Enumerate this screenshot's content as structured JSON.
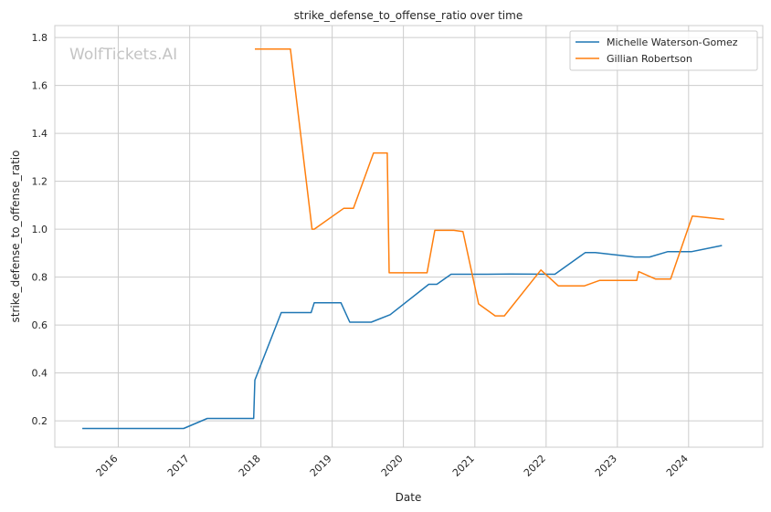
{
  "watermark": "WolfTickets.AI",
  "chart_data": {
    "type": "line",
    "title": "strike_defense_to_offense_ratio over time",
    "xlabel": "Date",
    "ylabel": "strike_defense_to_offense_ratio",
    "xlim": [
      "2015-02-10",
      "2025-01-15"
    ],
    "ylim": [
      0.09,
      1.85
    ],
    "x_ticks": [
      "2016",
      "2017",
      "2018",
      "2019",
      "2020",
      "2021",
      "2022",
      "2023",
      "2024"
    ],
    "y_ticks": [
      "0.2",
      "0.4",
      "0.6",
      "0.8",
      "1.0",
      "1.2",
      "1.4",
      "1.6",
      "1.8"
    ],
    "grid": true,
    "legend_position": "top-right",
    "series": [
      {
        "name": "Michelle Waterson-Gomez",
        "color": "#1f77b4",
        "points": [
          [
            "2015-07-01",
            0.168
          ],
          [
            "2016-12-01",
            0.168
          ],
          [
            "2017-04-01",
            0.21
          ],
          [
            "2017-11-25",
            0.21
          ],
          [
            "2017-12-01",
            0.37
          ],
          [
            "2018-04-15",
            0.652
          ],
          [
            "2018-09-15",
            0.652
          ],
          [
            "2018-10-01",
            0.693
          ],
          [
            "2019-02-15",
            0.693
          ],
          [
            "2019-04-01",
            0.612
          ],
          [
            "2019-07-20",
            0.612
          ],
          [
            "2019-10-25",
            0.643
          ],
          [
            "2020-05-10",
            0.77
          ],
          [
            "2020-06-20",
            0.77
          ],
          [
            "2020-09-01",
            0.812
          ],
          [
            "2021-03-01",
            0.812
          ],
          [
            "2021-07-01",
            0.813
          ],
          [
            "2022-02-15",
            0.812
          ],
          [
            "2022-07-20",
            0.902
          ],
          [
            "2022-09-10",
            0.902
          ],
          [
            "2023-04-01",
            0.884
          ],
          [
            "2023-06-15",
            0.884
          ],
          [
            "2023-09-15",
            0.906
          ],
          [
            "2024-01-15",
            0.906
          ],
          [
            "2024-06-20",
            0.932
          ]
        ]
      },
      {
        "name": "Gillian Robertson",
        "color": "#ff7f0e",
        "points": [
          [
            "2017-12-01",
            1.752
          ],
          [
            "2018-06-01",
            1.752
          ],
          [
            "2018-09-20",
            1.0
          ],
          [
            "2018-10-01",
            1.0
          ],
          [
            "2019-03-01",
            1.087
          ],
          [
            "2019-04-20",
            1.087
          ],
          [
            "2019-08-01",
            1.318
          ],
          [
            "2019-10-10",
            1.318
          ],
          [
            "2019-10-20",
            0.818
          ],
          [
            "2020-05-01",
            0.818
          ],
          [
            "2020-06-10",
            0.995
          ],
          [
            "2020-09-15",
            0.995
          ],
          [
            "2020-11-01",
            0.99
          ],
          [
            "2021-01-20",
            0.688
          ],
          [
            "2021-04-15",
            0.638
          ],
          [
            "2021-06-01",
            0.638
          ],
          [
            "2021-12-05",
            0.83
          ],
          [
            "2022-03-05",
            0.763
          ],
          [
            "2022-07-15",
            0.763
          ],
          [
            "2022-10-01",
            0.786
          ],
          [
            "2023-04-10",
            0.786
          ],
          [
            "2023-04-20",
            0.823
          ],
          [
            "2023-07-15",
            0.792
          ],
          [
            "2023-10-01",
            0.792
          ],
          [
            "2024-01-20",
            1.055
          ],
          [
            "2024-07-01",
            1.041
          ]
        ]
      }
    ]
  }
}
